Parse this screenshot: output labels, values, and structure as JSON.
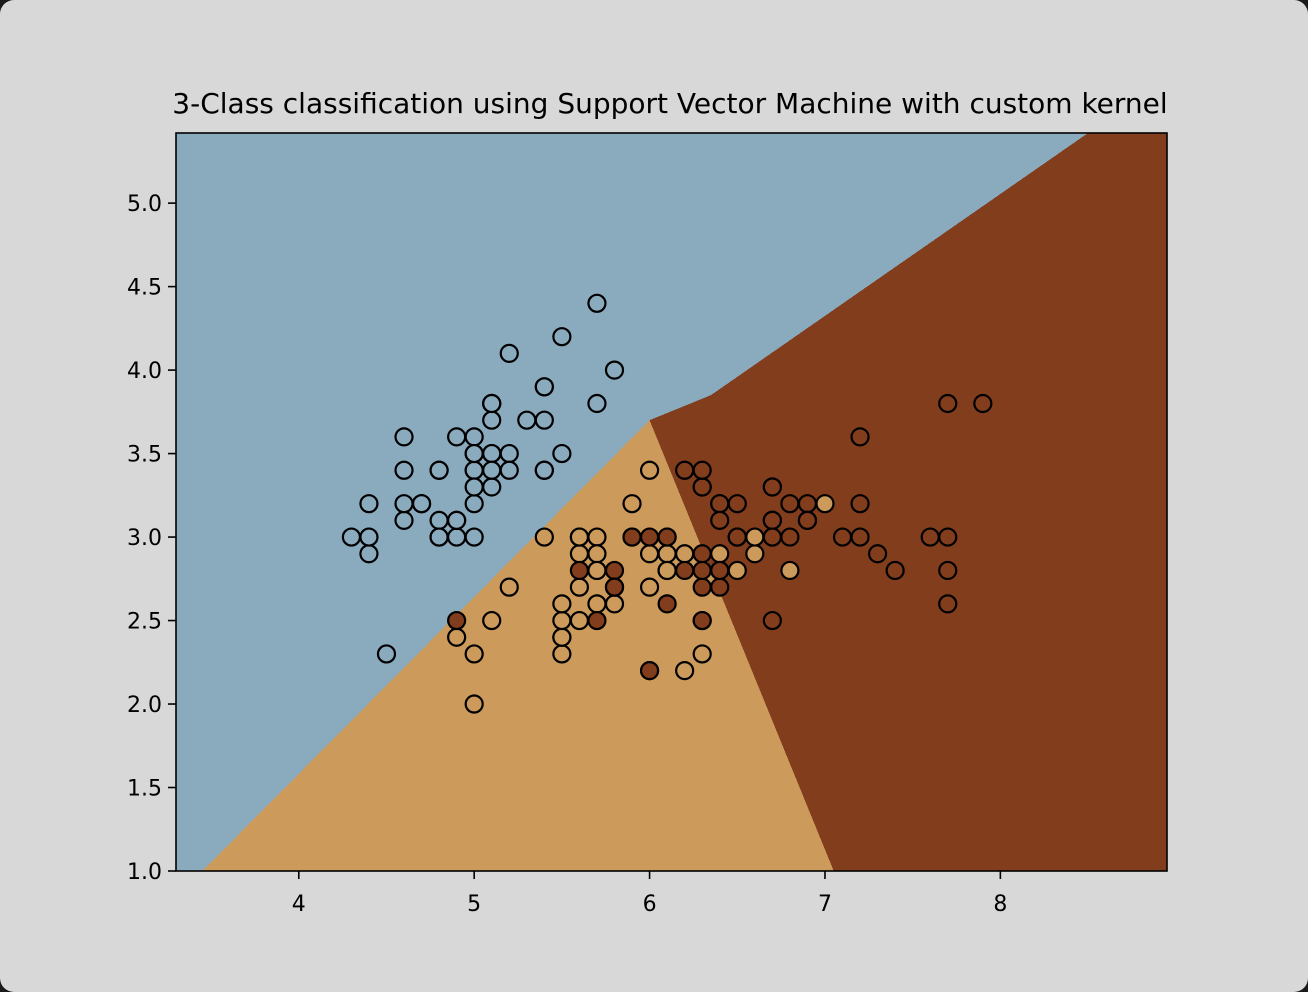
{
  "colors": {
    "window_bg": "#d8d8d8",
    "region_class0": "#8aaabe",
    "region_class1": "#cc9a5b",
    "region_class2": "#823d1d",
    "point_class0": "#8aaabe",
    "point_class1": "#cc9a5b",
    "point_class2": "#823d1d",
    "point_edge": "#000000"
  },
  "chart_data": {
    "type": "scatter",
    "title": "3-Class classification using Support Vector Machine with custom kernel",
    "xlabel": "",
    "ylabel": "",
    "xlim": [
      3.3,
      8.95
    ],
    "ylim": [
      1.0,
      5.42
    ],
    "x_ticks": [
      4,
      5,
      6,
      7,
      8
    ],
    "x_tick_labels": [
      "4",
      "5",
      "6",
      "7",
      "8"
    ],
    "y_ticks": [
      1.0,
      1.5,
      2.0,
      2.5,
      3.0,
      3.5,
      4.0,
      4.5,
      5.0
    ],
    "y_tick_labels": [
      "1.0",
      "1.5",
      "2.0",
      "2.5",
      "3.0",
      "3.5",
      "4.0",
      "4.5",
      "5.0"
    ],
    "grid": false,
    "legend": "none",
    "decision_regions": {
      "classes": [
        0,
        1,
        2
      ],
      "boundary_class0_class1": [
        [
          3.45,
          1.0
        ],
        [
          6.0,
          3.7
        ]
      ],
      "boundary_class0_class2": [
        [
          6.0,
          3.7
        ],
        [
          6.35,
          3.85
        ],
        [
          8.5,
          5.42
        ]
      ],
      "boundary_class1_class2": [
        [
          6.0,
          3.7
        ],
        [
          7.05,
          1.0
        ]
      ]
    },
    "series": [
      {
        "class": 0,
        "points": [
          [
            5.1,
            3.5
          ],
          [
            4.9,
            3.0
          ],
          [
            4.7,
            3.2
          ],
          [
            4.6,
            3.1
          ],
          [
            5.0,
            3.6
          ],
          [
            5.4,
            3.9
          ],
          [
            4.6,
            3.4
          ],
          [
            5.0,
            3.4
          ],
          [
            4.4,
            2.9
          ],
          [
            4.9,
            3.1
          ],
          [
            5.4,
            3.7
          ],
          [
            4.8,
            3.4
          ],
          [
            4.8,
            3.0
          ],
          [
            4.3,
            3.0
          ],
          [
            5.8,
            4.0
          ],
          [
            5.7,
            4.4
          ],
          [
            5.4,
            3.9
          ],
          [
            5.1,
            3.5
          ],
          [
            5.7,
            3.8
          ],
          [
            5.1,
            3.8
          ],
          [
            5.4,
            3.4
          ],
          [
            5.1,
            3.7
          ],
          [
            4.6,
            3.6
          ],
          [
            5.1,
            3.3
          ],
          [
            4.8,
            3.4
          ],
          [
            5.0,
            3.0
          ],
          [
            5.0,
            3.4
          ],
          [
            5.2,
            3.5
          ],
          [
            5.2,
            3.4
          ],
          [
            4.7,
            3.2
          ],
          [
            4.8,
            3.1
          ],
          [
            5.4,
            3.4
          ],
          [
            5.2,
            4.1
          ],
          [
            5.5,
            4.2
          ],
          [
            4.9,
            3.1
          ],
          [
            5.0,
            3.2
          ],
          [
            5.5,
            3.5
          ],
          [
            4.9,
            3.6
          ],
          [
            4.4,
            3.0
          ],
          [
            5.1,
            3.4
          ],
          [
            5.0,
            3.5
          ],
          [
            4.5,
            2.3
          ],
          [
            4.4,
            3.2
          ],
          [
            5.0,
            3.5
          ],
          [
            5.1,
            3.8
          ],
          [
            4.8,
            3.0
          ],
          [
            5.1,
            3.8
          ],
          [
            4.6,
            3.2
          ],
          [
            5.3,
            3.7
          ],
          [
            5.0,
            3.3
          ]
        ]
      },
      {
        "class": 1,
        "points": [
          [
            7.0,
            3.2
          ],
          [
            6.4,
            3.2
          ],
          [
            6.9,
            3.1
          ],
          [
            5.5,
            2.3
          ],
          [
            6.5,
            2.8
          ],
          [
            5.7,
            2.8
          ],
          [
            6.3,
            3.3
          ],
          [
            4.9,
            2.4
          ],
          [
            6.6,
            2.9
          ],
          [
            5.2,
            2.7
          ],
          [
            5.0,
            2.0
          ],
          [
            5.9,
            3.0
          ],
          [
            6.0,
            2.2
          ],
          [
            6.1,
            2.9
          ],
          [
            5.6,
            2.9
          ],
          [
            6.7,
            3.1
          ],
          [
            5.6,
            3.0
          ],
          [
            5.8,
            2.7
          ],
          [
            6.2,
            2.2
          ],
          [
            5.6,
            2.5
          ],
          [
            5.9,
            3.2
          ],
          [
            6.1,
            2.8
          ],
          [
            6.3,
            2.5
          ],
          [
            6.1,
            2.8
          ],
          [
            6.4,
            2.9
          ],
          [
            6.6,
            3.0
          ],
          [
            6.8,
            2.8
          ],
          [
            6.7,
            3.0
          ],
          [
            6.0,
            2.9
          ],
          [
            5.7,
            2.6
          ],
          [
            5.5,
            2.4
          ],
          [
            5.5,
            2.4
          ],
          [
            5.8,
            2.7
          ],
          [
            6.0,
            2.7
          ],
          [
            5.4,
            3.0
          ],
          [
            6.0,
            3.4
          ],
          [
            6.7,
            3.1
          ],
          [
            6.3,
            2.3
          ],
          [
            5.6,
            3.0
          ],
          [
            5.5,
            2.5
          ],
          [
            5.5,
            2.6
          ],
          [
            6.1,
            3.0
          ],
          [
            5.8,
            2.6
          ],
          [
            5.0,
            2.3
          ],
          [
            5.6,
            2.7
          ],
          [
            5.7,
            3.0
          ],
          [
            5.7,
            2.9
          ],
          [
            6.2,
            2.9
          ],
          [
            5.1,
            2.5
          ],
          [
            5.7,
            2.8
          ]
        ]
      },
      {
        "class": 2,
        "points": [
          [
            6.3,
            3.3
          ],
          [
            5.8,
            2.7
          ],
          [
            7.1,
            3.0
          ],
          [
            6.3,
            2.9
          ],
          [
            6.5,
            3.0
          ],
          [
            7.6,
            3.0
          ],
          [
            4.9,
            2.5
          ],
          [
            7.3,
            2.9
          ],
          [
            6.7,
            2.5
          ],
          [
            7.2,
            3.6
          ],
          [
            6.5,
            3.2
          ],
          [
            6.4,
            2.7
          ],
          [
            6.8,
            3.0
          ],
          [
            5.7,
            2.5
          ],
          [
            5.8,
            2.8
          ],
          [
            6.4,
            3.2
          ],
          [
            6.5,
            3.0
          ],
          [
            7.7,
            3.8
          ],
          [
            7.7,
            2.6
          ],
          [
            6.0,
            2.2
          ],
          [
            6.9,
            3.2
          ],
          [
            5.6,
            2.8
          ],
          [
            7.7,
            2.8
          ],
          [
            6.3,
            2.7
          ],
          [
            6.7,
            3.3
          ],
          [
            7.2,
            3.2
          ],
          [
            6.2,
            2.8
          ],
          [
            6.1,
            3.0
          ],
          [
            6.4,
            2.8
          ],
          [
            7.2,
            3.0
          ],
          [
            7.4,
            2.8
          ],
          [
            7.9,
            3.8
          ],
          [
            6.4,
            2.8
          ],
          [
            6.3,
            2.8
          ],
          [
            6.1,
            2.6
          ],
          [
            7.7,
            3.0
          ],
          [
            6.3,
            3.4
          ],
          [
            6.4,
            3.1
          ],
          [
            6.0,
            3.0
          ],
          [
            6.9,
            3.1
          ],
          [
            6.7,
            3.1
          ],
          [
            6.9,
            3.1
          ],
          [
            5.8,
            2.7
          ],
          [
            6.8,
            3.2
          ],
          [
            6.7,
            3.3
          ],
          [
            6.7,
            3.0
          ],
          [
            6.3,
            2.5
          ],
          [
            6.5,
            3.0
          ],
          [
            6.2,
            3.4
          ],
          [
            5.9,
            3.0
          ]
        ]
      }
    ]
  }
}
